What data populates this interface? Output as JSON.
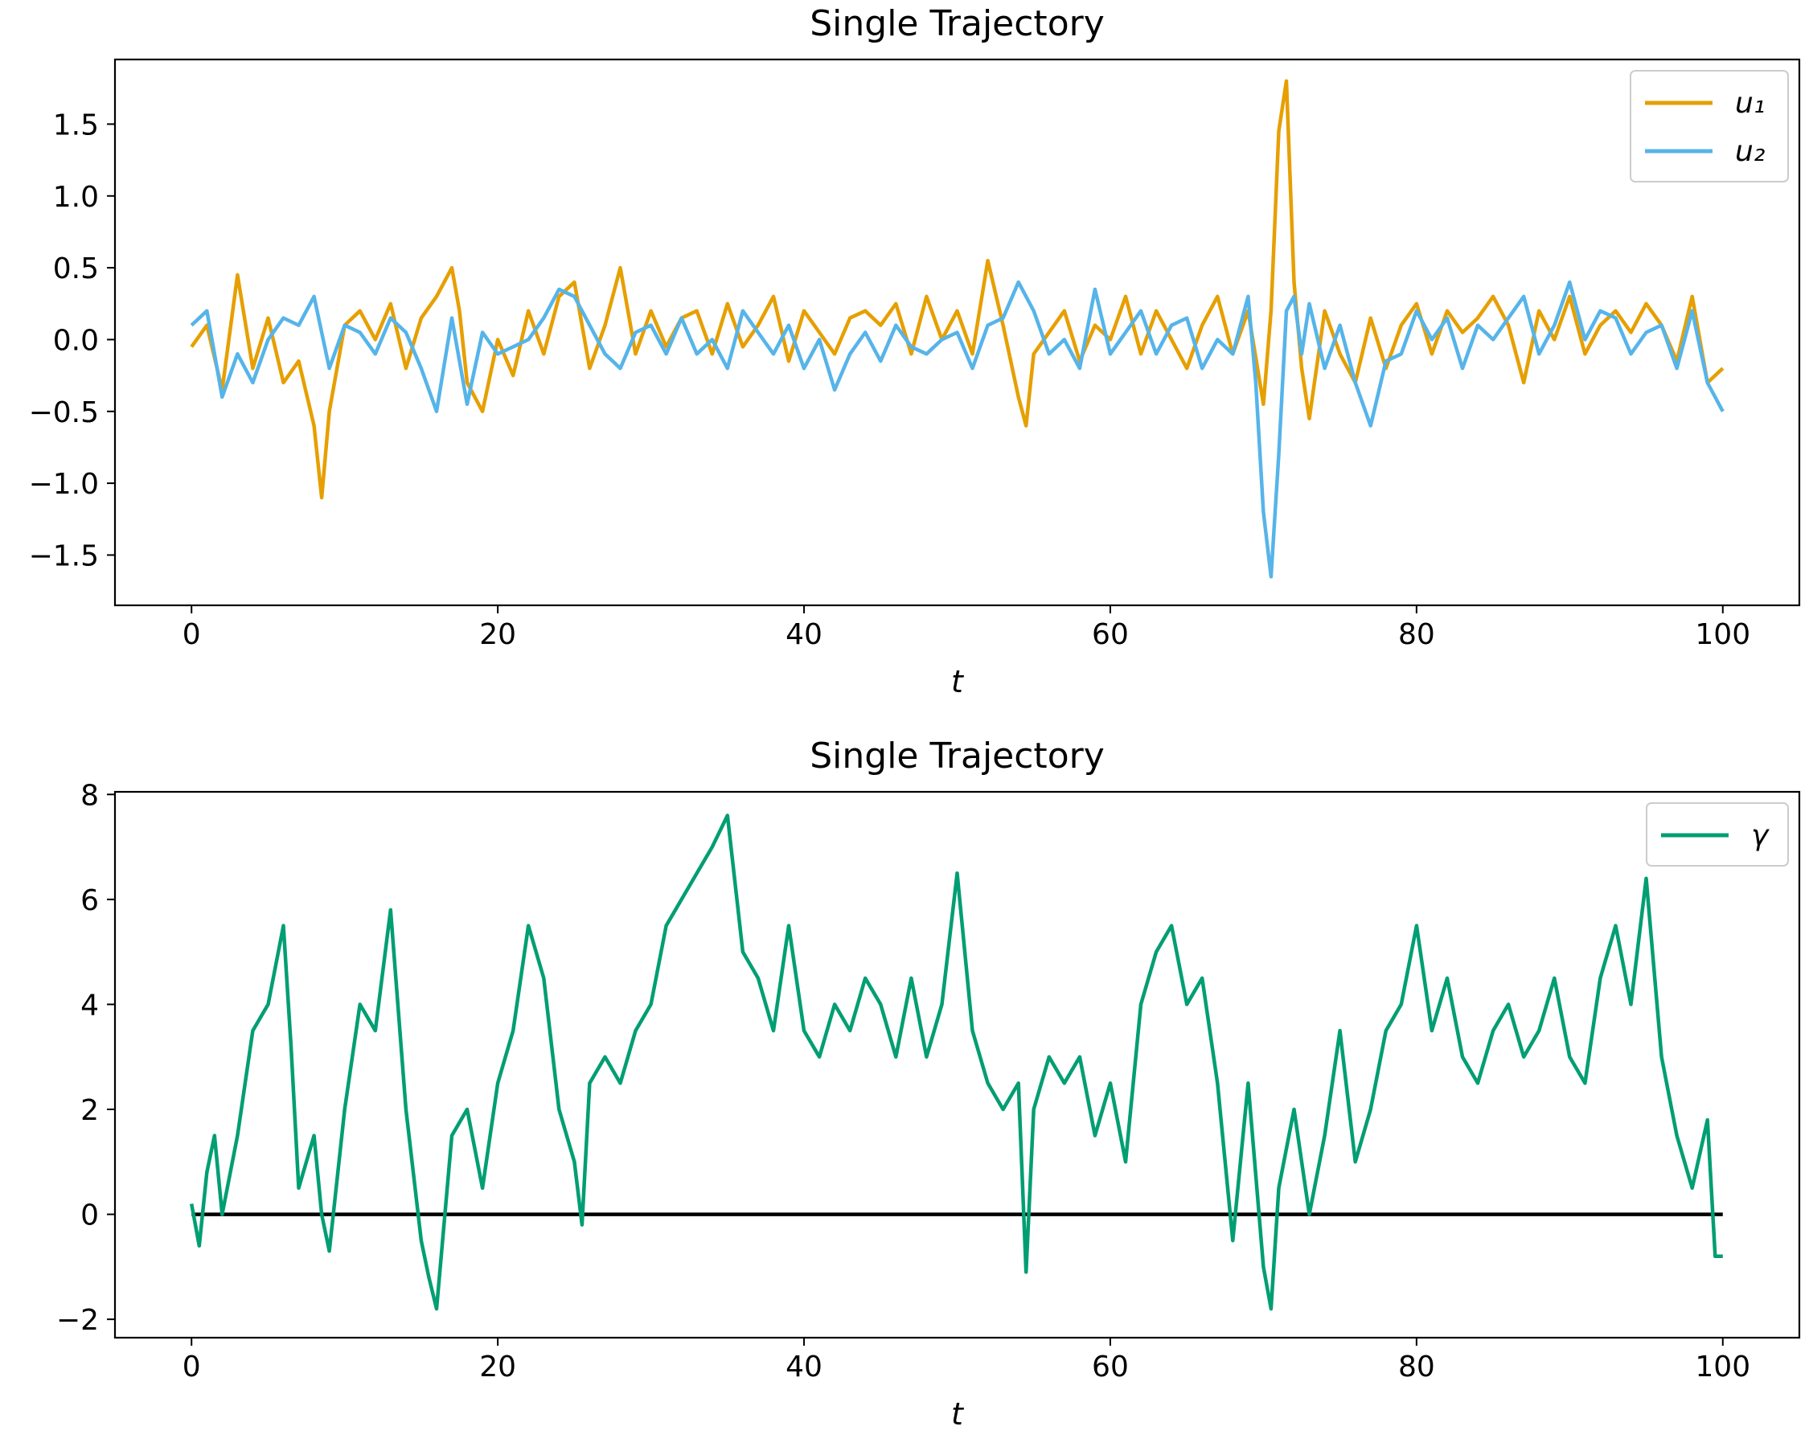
{
  "chart_data": [
    {
      "type": "line",
      "title": "Single Trajectory",
      "xlabel": "t",
      "ylabel": "",
      "xlim": [
        -5,
        105
      ],
      "ylim": [
        -1.85,
        1.95
      ],
      "xticks": [
        0,
        20,
        40,
        60,
        80,
        100
      ],
      "xtick_labels": [
        "0",
        "20",
        "40",
        "60",
        "80",
        "100"
      ],
      "yticks": [
        -1.5,
        -1.0,
        -0.5,
        0.0,
        0.5,
        1.0,
        1.5
      ],
      "ytick_labels": [
        "−1.5",
        "−1.0",
        "−0.5",
        "0.0",
        "0.5",
        "1.0",
        "1.5"
      ],
      "grid": false,
      "legend_position": "top-right",
      "series": [
        {
          "name": "u₁",
          "color": "#E69F00",
          "x": [
            0,
            1,
            2,
            3,
            4,
            5,
            6,
            7,
            8,
            8.5,
            9,
            10,
            11,
            12,
            13,
            14,
            15,
            16,
            17,
            17.5,
            18,
            19,
            20,
            21,
            22,
            23,
            24,
            25,
            26,
            27,
            28,
            29,
            30,
            31,
            32,
            33,
            34,
            35,
            36,
            37,
            38,
            39,
            40,
            41,
            42,
            43,
            44,
            45,
            46,
            47,
            48,
            49,
            50,
            51,
            52,
            53,
            54,
            54.5,
            55,
            56,
            57,
            58,
            59,
            60,
            61,
            62,
            63,
            64,
            65,
            66,
            67,
            68,
            69,
            70,
            70.5,
            71,
            71.5,
            72,
            72.5,
            73,
            74,
            75,
            76,
            77,
            78,
            79,
            80,
            81,
            82,
            83,
            84,
            85,
            86,
            87,
            88,
            89,
            90,
            91,
            92,
            93,
            94,
            95,
            96,
            97,
            98,
            99,
            100
          ],
          "y": [
            -0.05,
            0.1,
            -0.35,
            0.45,
            -0.2,
            0.15,
            -0.3,
            -0.15,
            -0.6,
            -1.1,
            -0.5,
            0.1,
            0.2,
            0.0,
            0.25,
            -0.2,
            0.15,
            0.3,
            0.5,
            0.2,
            -0.3,
            -0.5,
            0.0,
            -0.25,
            0.2,
            -0.1,
            0.3,
            0.4,
            -0.2,
            0.1,
            0.5,
            -0.1,
            0.2,
            -0.05,
            0.15,
            0.2,
            -0.1,
            0.25,
            -0.05,
            0.1,
            0.3,
            -0.15,
            0.2,
            0.05,
            -0.1,
            0.15,
            0.2,
            0.1,
            0.25,
            -0.1,
            0.3,
            0.0,
            0.2,
            -0.1,
            0.55,
            0.1,
            -0.4,
            -0.6,
            -0.1,
            0.05,
            0.2,
            -0.15,
            0.1,
            0.0,
            0.3,
            -0.1,
            0.2,
            0.0,
            -0.2,
            0.1,
            0.3,
            -0.1,
            0.2,
            -0.45,
            0.2,
            1.45,
            1.8,
            0.4,
            -0.2,
            -0.55,
            0.2,
            -0.1,
            -0.3,
            0.15,
            -0.2,
            0.1,
            0.25,
            -0.1,
            0.2,
            0.05,
            0.15,
            0.3,
            0.1,
            -0.3,
            0.2,
            0.0,
            0.3,
            -0.1,
            0.1,
            0.2,
            0.05,
            0.25,
            0.1,
            -0.15,
            0.3,
            -0.3,
            -0.2
          ]
        },
        {
          "name": "u₂",
          "color": "#56B4E9",
          "x": [
            0,
            1,
            2,
            3,
            4,
            5,
            6,
            7,
            8,
            9,
            10,
            11,
            12,
            13,
            14,
            15,
            16,
            17,
            18,
            19,
            20,
            21,
            22,
            23,
            24,
            25,
            26,
            27,
            28,
            29,
            30,
            31,
            32,
            33,
            34,
            35,
            36,
            37,
            38,
            39,
            40,
            41,
            42,
            43,
            44,
            45,
            46,
            47,
            48,
            49,
            50,
            51,
            52,
            53,
            54,
            55,
            56,
            57,
            58,
            59,
            60,
            61,
            62,
            63,
            64,
            65,
            66,
            67,
            68,
            69,
            69.5,
            70,
            70.5,
            71,
            71.5,
            72,
            72.5,
            73,
            74,
            75,
            76,
            77,
            78,
            79,
            80,
            81,
            82,
            83,
            84,
            85,
            86,
            87,
            88,
            89,
            90,
            91,
            92,
            93,
            94,
            95,
            96,
            97,
            98,
            99,
            100
          ],
          "y": [
            0.1,
            0.2,
            -0.4,
            -0.1,
            -0.3,
            0.0,
            0.15,
            0.1,
            0.3,
            -0.2,
            0.1,
            0.05,
            -0.1,
            0.15,
            0.05,
            -0.2,
            -0.5,
            0.15,
            -0.45,
            0.05,
            -0.1,
            -0.05,
            0.0,
            0.15,
            0.35,
            0.3,
            0.1,
            -0.1,
            -0.2,
            0.05,
            0.1,
            -0.1,
            0.15,
            -0.1,
            0.0,
            -0.2,
            0.2,
            0.05,
            -0.1,
            0.1,
            -0.2,
            0.0,
            -0.35,
            -0.1,
            0.05,
            -0.15,
            0.1,
            -0.05,
            -0.1,
            0.0,
            0.05,
            -0.2,
            0.1,
            0.15,
            0.4,
            0.2,
            -0.1,
            0.0,
            -0.2,
            0.35,
            -0.1,
            0.05,
            0.2,
            -0.1,
            0.1,
            0.15,
            -0.2,
            0.0,
            -0.1,
            0.3,
            -0.3,
            -1.2,
            -1.65,
            -0.8,
            0.2,
            0.3,
            -0.1,
            0.25,
            -0.2,
            0.1,
            -0.3,
            -0.6,
            -0.15,
            -0.1,
            0.2,
            0.0,
            0.15,
            -0.2,
            0.1,
            0.0,
            0.15,
            0.3,
            -0.1,
            0.1,
            0.4,
            0.0,
            0.2,
            0.15,
            -0.1,
            0.05,
            0.1,
            -0.2,
            0.2,
            -0.3,
            -0.5
          ]
        }
      ]
    },
    {
      "type": "line",
      "title": "Single Trajectory",
      "xlabel": "t",
      "ylabel": "",
      "xlim": [
        -5,
        105
      ],
      "ylim": [
        -2.35,
        8.05
      ],
      "xticks": [
        0,
        20,
        40,
        60,
        80,
        100
      ],
      "xtick_labels": [
        "0",
        "20",
        "40",
        "60",
        "80",
        "100"
      ],
      "yticks": [
        -2,
        0,
        2,
        4,
        6,
        8
      ],
      "ytick_labels": [
        "−2",
        "0",
        "2",
        "4",
        "6",
        "8"
      ],
      "grid": false,
      "legend_position": "top-right",
      "reference_line": {
        "y": 0,
        "x_start": 0,
        "x_end": 100,
        "color": "#000000"
      },
      "series": [
        {
          "name": "γ",
          "color": "#009E73",
          "x": [
            0,
            0.5,
            1,
            1.5,
            2,
            3,
            4,
            5,
            6,
            6.5,
            7,
            8,
            8.5,
            9,
            10,
            11,
            12,
            13,
            14,
            15,
            15.5,
            16,
            17,
            18,
            19,
            20,
            21,
            22,
            23,
            24,
            25,
            25.5,
            26,
            27,
            28,
            29,
            30,
            31,
            32,
            33,
            34,
            35,
            36,
            37,
            38,
            39,
            40,
            41,
            42,
            43,
            44,
            45,
            46,
            47,
            48,
            49,
            50,
            51,
            52,
            53,
            54,
            54.5,
            55,
            56,
            57,
            58,
            59,
            60,
            61,
            62,
            63,
            64,
            65,
            66,
            67,
            68,
            69,
            70,
            70.5,
            71,
            72,
            73,
            74,
            75,
            76,
            77,
            78,
            79,
            80,
            81,
            82,
            83,
            84,
            85,
            86,
            87,
            88,
            89,
            90,
            91,
            92,
            93,
            94,
            95,
            96,
            97,
            98,
            99,
            99.5,
            100
          ],
          "y": [
            0.2,
            -0.6,
            0.8,
            1.5,
            0.0,
            1.5,
            3.5,
            4.0,
            5.5,
            3.2,
            0.5,
            1.5,
            0.0,
            -0.7,
            2.0,
            4.0,
            3.5,
            5.8,
            2.0,
            -0.5,
            -1.2,
            -1.8,
            1.5,
            2.0,
            0.5,
            2.5,
            3.5,
            5.5,
            4.5,
            2.0,
            1.0,
            -0.2,
            2.5,
            3.0,
            2.5,
            3.5,
            4.0,
            5.5,
            6.0,
            6.5,
            7.0,
            7.6,
            5.0,
            4.5,
            3.5,
            5.5,
            3.5,
            3.0,
            4.0,
            3.5,
            4.5,
            4.0,
            3.0,
            4.5,
            3.0,
            4.0,
            6.5,
            3.5,
            2.5,
            2.0,
            2.5,
            -1.1,
            2.0,
            3.0,
            2.5,
            3.0,
            1.5,
            2.5,
            1.0,
            4.0,
            5.0,
            5.5,
            4.0,
            4.5,
            2.5,
            -0.5,
            2.5,
            -1.0,
            -1.8,
            0.5,
            2.0,
            0.0,
            1.5,
            3.5,
            1.0,
            2.0,
            3.5,
            4.0,
            5.5,
            3.5,
            4.5,
            3.0,
            2.5,
            3.5,
            4.0,
            3.0,
            3.5,
            4.5,
            3.0,
            2.5,
            4.5,
            5.5,
            4.0,
            6.4,
            3.0,
            1.5,
            0.5,
            1.8,
            -0.8,
            -0.8
          ]
        }
      ]
    }
  ]
}
